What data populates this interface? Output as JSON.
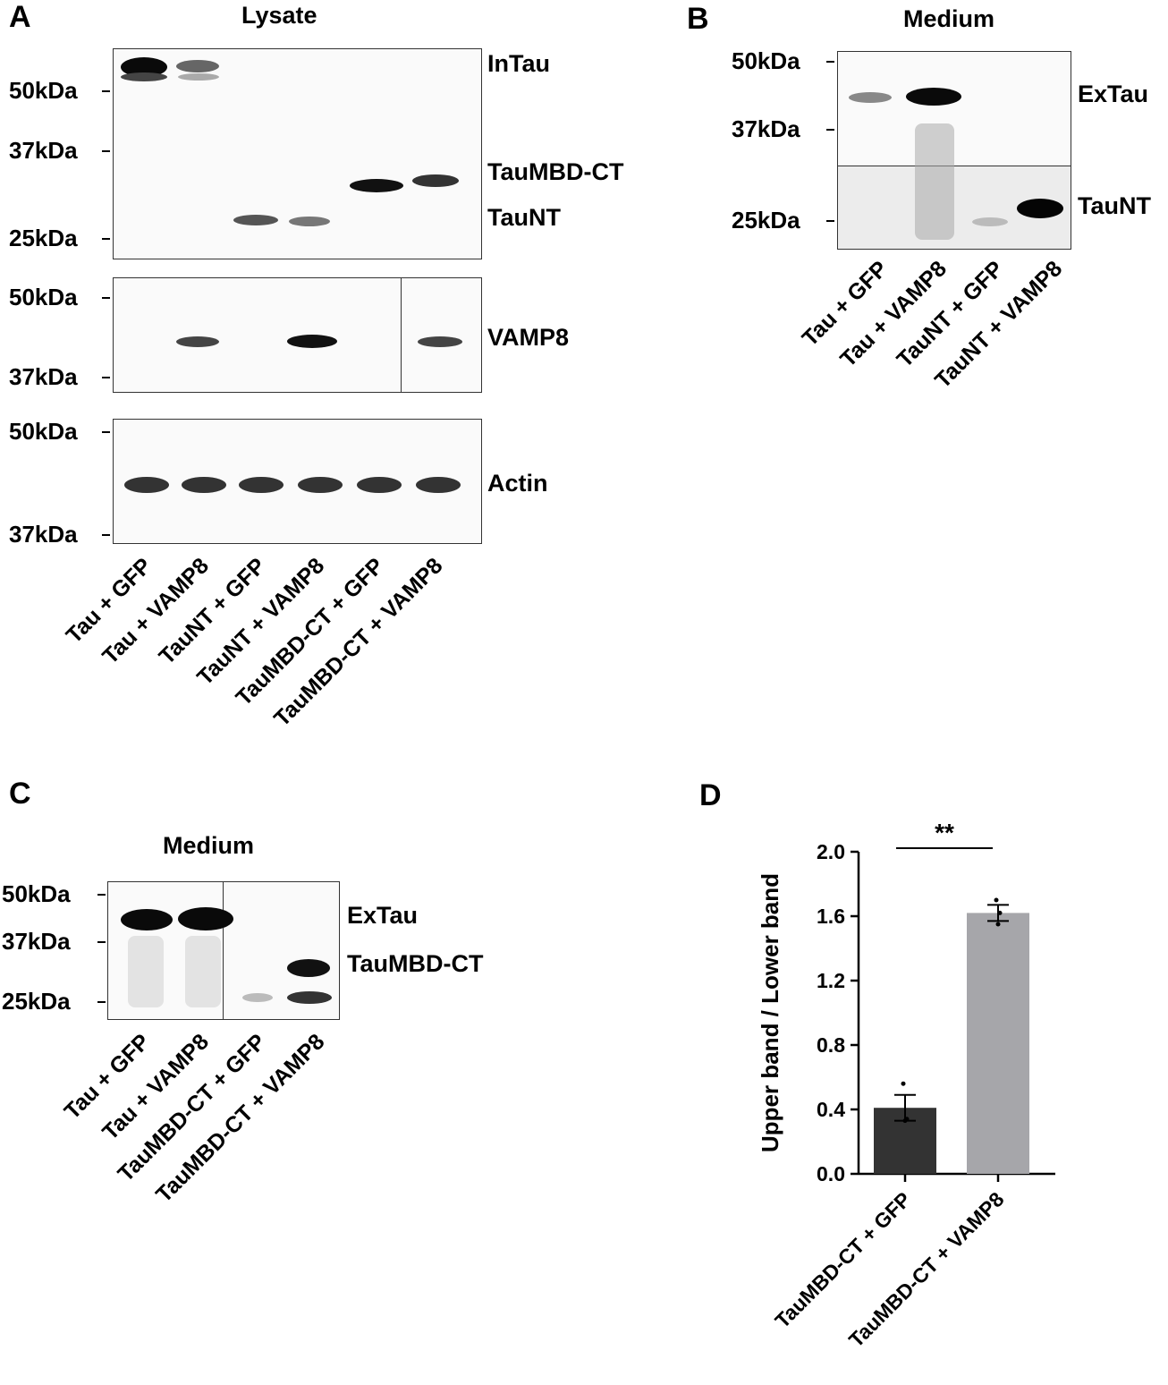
{
  "panels": {
    "A": {
      "letter": "A",
      "title": "Lysate",
      "blots": [
        {
          "markers": [
            "50kDa",
            "37kDa",
            "25kDa"
          ],
          "bands": [
            "InTau",
            "TauMBD-CT",
            "TauNT"
          ]
        },
        {
          "markers": [
            "50kDa",
            "37kDa"
          ],
          "bands": [
            "VAMP8"
          ]
        },
        {
          "markers": [
            "50kDa",
            "37kDa"
          ],
          "bands": [
            "Actin"
          ]
        }
      ],
      "lanes": [
        "Tau + GFP",
        "Tau + VAMP8",
        "TauNT + GFP",
        "TauNT + VAMP8",
        "TauMBD-CT + GFP",
        "TauMBD-CT + VAMP8"
      ]
    },
    "B": {
      "letter": "B",
      "title": "Medium",
      "markers": [
        "50kDa",
        "37kDa",
        "25kDa"
      ],
      "bands": [
        "ExTau",
        "TauNT"
      ],
      "lanes": [
        "Tau + GFP",
        "Tau + VAMP8",
        "TauNT + GFP",
        "TauNT + VAMP8"
      ]
    },
    "C": {
      "letter": "C",
      "title": "Medium",
      "markers": [
        "50kDa",
        "37kDa",
        "25kDa"
      ],
      "bands": [
        "ExTau",
        "TauMBD-CT"
      ],
      "lanes": [
        "Tau + GFP",
        "Tau + VAMP8",
        "TauMBD-CT + GFP",
        "TauMBD-CT + VAMP8"
      ]
    },
    "D": {
      "letter": "D",
      "significance": "**"
    }
  },
  "chart_data": {
    "type": "bar",
    "categories": [
      "TauMBD-CT + GFP",
      "TauMBD-CT + VAMP8"
    ],
    "values": [
      0.41,
      1.62
    ],
    "error": [
      0.08,
      0.05
    ],
    "points": [
      [
        0.56,
        0.33,
        0.34
      ],
      [
        1.7,
        1.55,
        1.62
      ]
    ],
    "colors": [
      "#333333",
      "#a6a6aa"
    ],
    "ylabel": "Upper band / Lower band",
    "ylim": [
      0.0,
      2.0
    ],
    "yticks": [
      "0.0",
      "0.4",
      "0.8",
      "1.2",
      "1.6",
      "2.0"
    ]
  }
}
